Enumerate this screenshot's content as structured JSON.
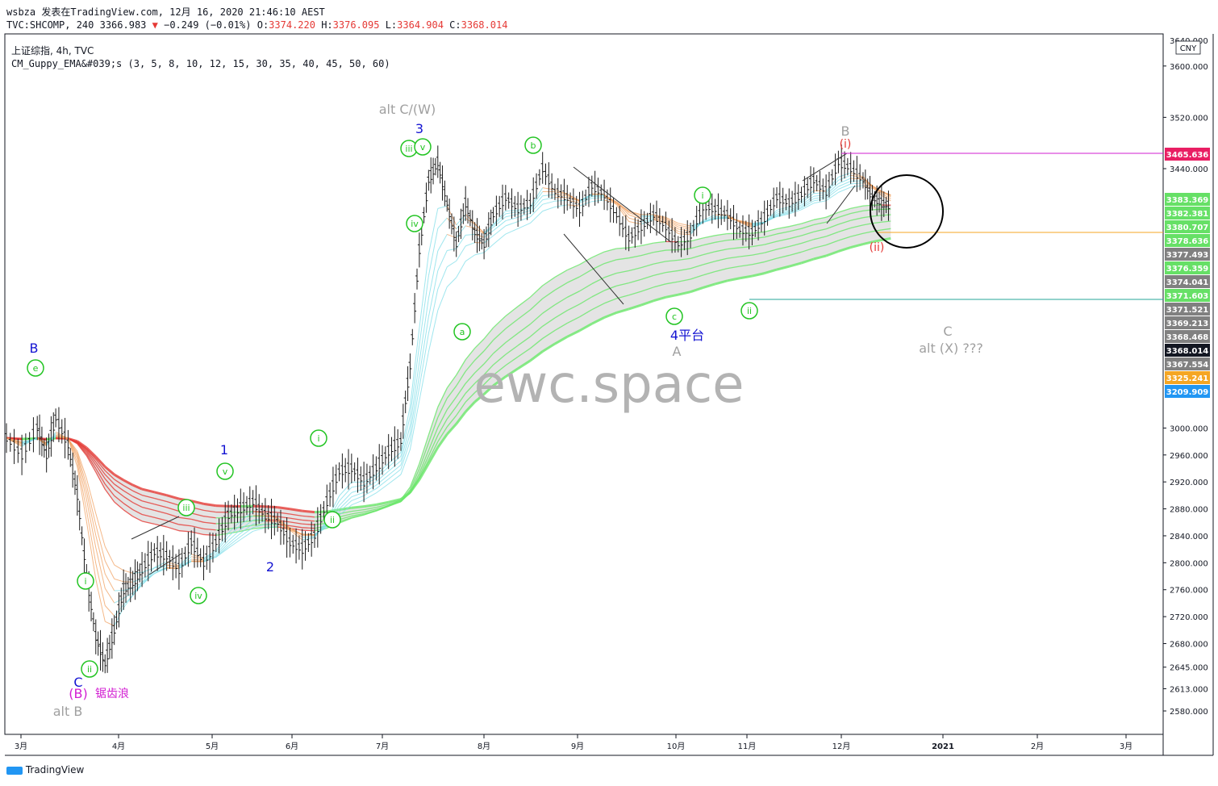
{
  "header": {
    "line1": "wsbza 发表在TradingView.com, 12月 16, 2020 21:46:10 AEST",
    "symbol": "TVC:SHCOMP, 240",
    "last": "3366.983",
    "change": "−0.249 (−0.01%)",
    "o_label": "O:",
    "o": "3374.220",
    "h_label": "H:",
    "h": "3376.095",
    "l_label": "L:",
    "l": "3364.904",
    "c_label": "C:",
    "c": "3368.014",
    "legend_title": "上证综指, 4h, TVC",
    "legend_indicator": "CM_Guppy_EMA&#039;s (3, 5, 8, 10, 12, 15, 30, 35, 40, 45, 50, 60)"
  },
  "currency": "CNY",
  "watermark": "ewc.space",
  "footer": {
    "brand": "TradingView"
  },
  "colors": {
    "up_green": "#69e769",
    "down_red": "#e53935",
    "cyan": "#7fdde8",
    "gray": "#8c8c8c",
    "orange": "#f0a060",
    "blue": "#1414d2",
    "pink": "#d21ed2",
    "label_gray": "#a0a0a0"
  },
  "chart_data": {
    "type": "line",
    "xlabel": "",
    "ylabel": "",
    "x_ticks": [
      "3月",
      "4月",
      "5月",
      "6月",
      "7月",
      "8月",
      "9月",
      "10月",
      "11月",
      "12月",
      "2021",
      "2月",
      "3月"
    ],
    "y_ticks": [
      "3600.000",
      "3520.000",
      "3440.000",
      "3000.000",
      "2960.000",
      "2920.000",
      "2880.000",
      "2840.000",
      "2800.000",
      "2760.000",
      "2720.000",
      "2680.000",
      "2645.000",
      "2613.000",
      "2580.000"
    ],
    "y_top_tick": "3640.000",
    "price_tags": [
      {
        "value": "3465.636",
        "color": "#e91e63"
      },
      {
        "value": "3383.369",
        "color": "#66e066"
      },
      {
        "value": "3382.381",
        "color": "#66e066"
      },
      {
        "value": "3380.707",
        "color": "#66e066"
      },
      {
        "value": "3378.636",
        "color": "#66e066"
      },
      {
        "value": "3377.493",
        "color": "#808080"
      },
      {
        "value": "3376.359",
        "color": "#66e066"
      },
      {
        "value": "3374.041",
        "color": "#808080"
      },
      {
        "value": "3371.603",
        "color": "#66e066"
      },
      {
        "value": "3371.521",
        "color": "#808080"
      },
      {
        "value": "3369.213",
        "color": "#808080"
      },
      {
        "value": "3368.468",
        "color": "#808080"
      },
      {
        "value": "3368.014",
        "color": "#131722"
      },
      {
        "value": "3367.554",
        "color": "#808080"
      },
      {
        "value": "3325.241",
        "color": "#f5a623"
      },
      {
        "value": "3209.909",
        "color": "#2196f3"
      }
    ],
    "wave_labels": [
      {
        "text": "B",
        "style": "blue"
      },
      {
        "text": "e",
        "style": "circle-green"
      },
      {
        "text": "i",
        "style": "circle-green"
      },
      {
        "text": "ii",
        "style": "circle-green"
      },
      {
        "text": "C",
        "style": "blue"
      },
      {
        "text": "(B)",
        "style": "pink"
      },
      {
        "text": "锯齿浪",
        "style": "pink-small"
      },
      {
        "text": "alt B",
        "style": "gray"
      },
      {
        "text": "iii",
        "style": "circle-green"
      },
      {
        "text": "iv",
        "style": "circle-green"
      },
      {
        "text": "1",
        "style": "blue"
      },
      {
        "text": "v",
        "style": "circle-green"
      },
      {
        "text": "2",
        "style": "blue"
      },
      {
        "text": "i",
        "style": "circle-green"
      },
      {
        "text": "ii",
        "style": "circle-green"
      },
      {
        "text": "alt C/(W)",
        "style": "gray"
      },
      {
        "text": "3",
        "style": "blue"
      },
      {
        "text": "iii",
        "style": "circle-green"
      },
      {
        "text": "v",
        "style": "circle-green"
      },
      {
        "text": "iv",
        "style": "circle-green"
      },
      {
        "text": "a",
        "style": "circle-green"
      },
      {
        "text": "b",
        "style": "circle-green"
      },
      {
        "text": "c",
        "style": "circle-green"
      },
      {
        "text": "4平台",
        "style": "blue"
      },
      {
        "text": "A",
        "style": "gray"
      },
      {
        "text": "i",
        "style": "circle-green"
      },
      {
        "text": "ii",
        "style": "circle-green"
      },
      {
        "text": "B",
        "style": "gray"
      },
      {
        "text": "(i)",
        "style": "red"
      },
      {
        "text": "(ii)",
        "style": "red"
      },
      {
        "text": "C",
        "style": "gray"
      },
      {
        "text": "alt (X) ???",
        "style": "gray"
      }
    ],
    "price_series": [
      {
        "t": 0,
        "p": 2985
      },
      {
        "t": 0.5,
        "p": 2960
      },
      {
        "t": 1.0,
        "p": 3000
      },
      {
        "t": 1.3,
        "p": 2960
      },
      {
        "t": 1.6,
        "p": 3015
      },
      {
        "t": 2.0,
        "p": 2975
      },
      {
        "t": 2.3,
        "p": 2900
      },
      {
        "t": 2.6,
        "p": 2780
      },
      {
        "t": 2.9,
        "p": 2690
      },
      {
        "t": 3.2,
        "p": 2650
      },
      {
        "t": 3.5,
        "p": 2700
      },
      {
        "t": 3.8,
        "p": 2760
      },
      {
        "t": 4.1,
        "p": 2770
      },
      {
        "t": 4.4,
        "p": 2790
      },
      {
        "t": 4.8,
        "p": 2815
      },
      {
        "t": 5.2,
        "p": 2810
      },
      {
        "t": 5.6,
        "p": 2790
      },
      {
        "t": 6.0,
        "p": 2830
      },
      {
        "t": 6.4,
        "p": 2800
      },
      {
        "t": 6.8,
        "p": 2830
      },
      {
        "t": 7.2,
        "p": 2870
      },
      {
        "t": 7.6,
        "p": 2880
      },
      {
        "t": 8.0,
        "p": 2890
      },
      {
        "t": 8.4,
        "p": 2870
      },
      {
        "t": 8.8,
        "p": 2860
      },
      {
        "t": 9.2,
        "p": 2830
      },
      {
        "t": 9.6,
        "p": 2820
      },
      {
        "t": 10.0,
        "p": 2840
      },
      {
        "t": 10.4,
        "p": 2890
      },
      {
        "t": 10.8,
        "p": 2935
      },
      {
        "t": 11.2,
        "p": 2940
      },
      {
        "t": 11.6,
        "p": 2920
      },
      {
        "t": 12.0,
        "p": 2940
      },
      {
        "t": 12.4,
        "p": 2965
      },
      {
        "t": 12.8,
        "p": 2980
      },
      {
        "t": 13.1,
        "p": 3100
      },
      {
        "t": 13.4,
        "p": 3300
      },
      {
        "t": 13.7,
        "p": 3420
      },
      {
        "t": 14.0,
        "p": 3450
      },
      {
        "t": 14.3,
        "p": 3380
      },
      {
        "t": 14.6,
        "p": 3310
      },
      {
        "t": 14.9,
        "p": 3380
      },
      {
        "t": 15.2,
        "p": 3330
      },
      {
        "t": 15.5,
        "p": 3310
      },
      {
        "t": 15.8,
        "p": 3360
      },
      {
        "t": 16.2,
        "p": 3390
      },
      {
        "t": 16.6,
        "p": 3370
      },
      {
        "t": 17.0,
        "p": 3380
      },
      {
        "t": 17.4,
        "p": 3440
      },
      {
        "t": 17.8,
        "p": 3400
      },
      {
        "t": 18.2,
        "p": 3390
      },
      {
        "t": 18.6,
        "p": 3370
      },
      {
        "t": 19.0,
        "p": 3410
      },
      {
        "t": 19.4,
        "p": 3395
      },
      {
        "t": 19.8,
        "p": 3360
      },
      {
        "t": 20.2,
        "p": 3320
      },
      {
        "t": 20.6,
        "p": 3340
      },
      {
        "t": 21.0,
        "p": 3360
      },
      {
        "t": 21.4,
        "p": 3340
      },
      {
        "t": 21.8,
        "p": 3310
      },
      {
        "t": 22.2,
        "p": 3325
      },
      {
        "t": 22.6,
        "p": 3375
      },
      {
        "t": 23.0,
        "p": 3370
      },
      {
        "t": 23.4,
        "p": 3360
      },
      {
        "t": 23.8,
        "p": 3335
      },
      {
        "t": 24.2,
        "p": 3330
      },
      {
        "t": 24.6,
        "p": 3355
      },
      {
        "t": 25.0,
        "p": 3390
      },
      {
        "t": 25.4,
        "p": 3380
      },
      {
        "t": 25.8,
        "p": 3395
      },
      {
        "t": 26.2,
        "p": 3420
      },
      {
        "t": 26.6,
        "p": 3400
      },
      {
        "t": 27.0,
        "p": 3450
      },
      {
        "t": 27.4,
        "p": 3440
      },
      {
        "t": 27.8,
        "p": 3420
      },
      {
        "t": 28.1,
        "p": 3390
      },
      {
        "t": 28.4,
        "p": 3380
      },
      {
        "t": 28.7,
        "p": 3375
      }
    ]
  }
}
